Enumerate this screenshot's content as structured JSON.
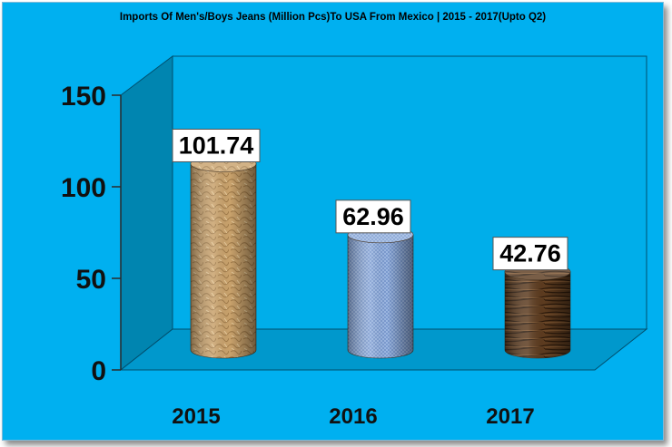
{
  "chart_data": {
    "type": "bar",
    "title": "Imports Of Men's/Boys Jeans (Million Pcs)To USA From Mexico | 2015 - 2017(Upto Q2)",
    "categories": [
      "2015",
      "2016",
      "2017"
    ],
    "values": [
      101.74,
      62.96,
      42.76
    ],
    "data_labels": [
      "101.74",
      "62.96",
      "42.76"
    ],
    "yticks": [
      "0",
      "50",
      "100",
      "150"
    ],
    "ylim": [
      0,
      150
    ],
    "grid": false,
    "legend": "none",
    "style": "3d-cylinders",
    "colors": {
      "background": "#00b0f0",
      "wall": "#00a8e8",
      "side_wall": "#0080a8",
      "floor": "#0094c8",
      "bars": [
        "#c8a06a",
        "#6e90c8",
        "#5a3a1e"
      ]
    }
  }
}
